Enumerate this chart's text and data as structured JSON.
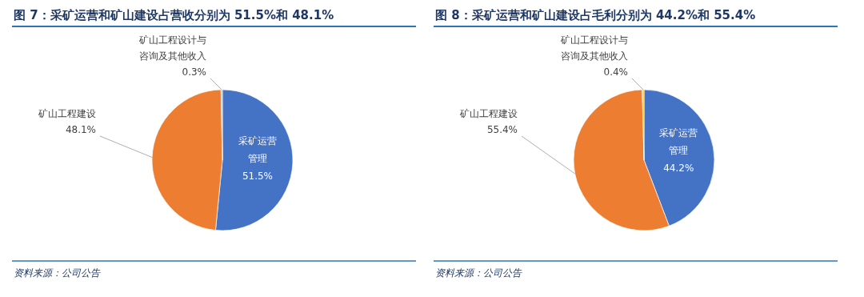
{
  "chart_data": [
    {
      "type": "pie",
      "title": "图 7：采矿运营和矿山建设占营收分别为 51.5%和 48.1%",
      "categories": [
        "采矿运营管理",
        "矿山工程建设",
        "矿山工程设计与咨询及其他收入"
      ],
      "values": [
        51.5,
        48.1,
        0.3
      ],
      "value_labels": [
        "51.5%",
        "48.1%",
        "0.3%"
      ],
      "colors": [
        "#4472c4",
        "#ed7d31",
        "#a5a5a5"
      ],
      "annotations": [
        "资料来源：公司公告"
      ]
    },
    {
      "type": "pie",
      "title": "图 8：采矿运营和矿山建设占毛利分别为 44.2%和 55.4%",
      "categories": [
        "采矿运营管理",
        "矿山工程建设",
        "矿山工程设计与咨询及其他收入"
      ],
      "values": [
        44.2,
        55.4,
        0.4
      ],
      "value_labels": [
        "44.2%",
        "55.4%",
        "0.4%"
      ],
      "colors": [
        "#4472c4",
        "#ed7d31",
        "#ffc000"
      ],
      "annotations": [
        "资料来源：公司公告"
      ]
    }
  ]
}
